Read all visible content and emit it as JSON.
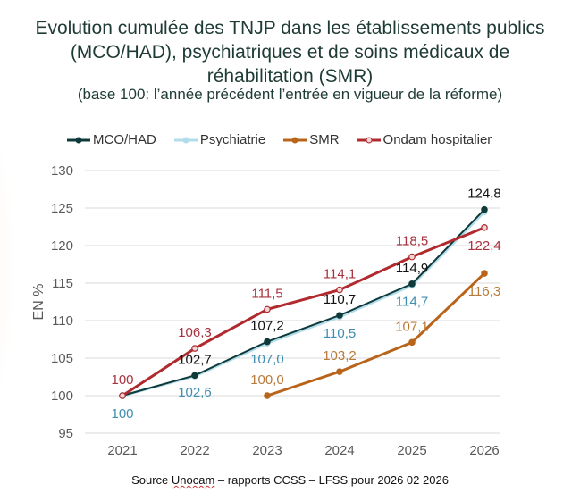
{
  "chart_data": {
    "type": "line",
    "title": "Evolution cumulée des TNJP dans les établissements publics (MCO/HAD), psychiatriques et de soins médicaux de réhabilitation (SMR)",
    "subtitle": "(base 100: l’année précédent l’entrée en vigueur de la réforme)",
    "xlabel": "",
    "ylabel": "EN %",
    "categories": [
      "2021",
      "2022",
      "2023",
      "2024",
      "2025",
      "2026"
    ],
    "ylim": [
      95,
      130
    ],
    "yticks": [
      "95",
      "100",
      "105",
      "110",
      "115",
      "120",
      "125",
      "130"
    ],
    "grid": true,
    "legend_position": "top",
    "series": [
      {
        "name": "MCO/HAD",
        "color": "#0f3a3a",
        "label_color": "#111111",
        "values": [
          100,
          102.7,
          107.2,
          110.7,
          114.9,
          124.8
        ],
        "labels": [
          null,
          "102,7",
          "107,2",
          "110,7",
          "114,9",
          "124,8"
        ],
        "marker": "filled"
      },
      {
        "name": "Psychiatrie",
        "color": "#b3dcea",
        "label_color": "#3f8db0",
        "values": [
          100,
          102.6,
          107.0,
          110.5,
          114.7,
          124.5
        ],
        "labels": [
          "100",
          "102,6",
          "107,0",
          "110,5",
          "114,7",
          null
        ],
        "marker": "filled"
      },
      {
        "name": "SMR",
        "color": "#b8651b",
        "label_color": "#b87a3a",
        "values": [
          null,
          null,
          100.0,
          103.2,
          107.1,
          116.3
        ],
        "labels": [
          null,
          null,
          "100,0",
          "103,2",
          "107,1",
          "116,3"
        ],
        "marker": "filled"
      },
      {
        "name": "Ondam hospitalier",
        "color": "#b02a2e",
        "label_color": "#a8323e",
        "values": [
          100,
          106.3,
          111.5,
          114.1,
          118.5,
          122.4
        ],
        "labels": [
          "100",
          "106,3",
          "111,5",
          "114,1",
          "118,5",
          "122,4"
        ],
        "marker": "open"
      }
    ]
  },
  "source": {
    "prefix": "Source ",
    "underlined": "Unocam",
    "suffix": " – rapports CCSS – LFSS pour 2026 02 2026"
  }
}
